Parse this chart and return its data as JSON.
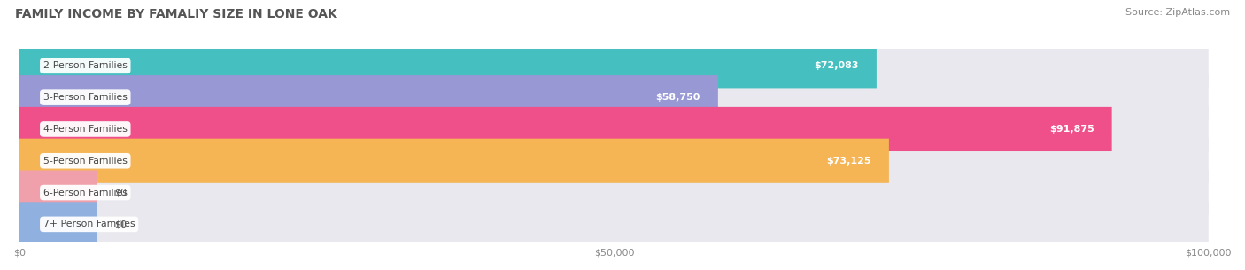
{
  "title": "FAMILY INCOME BY FAMALIY SIZE IN LONE OAK",
  "source": "Source: ZipAtlas.com",
  "categories": [
    "2-Person Families",
    "3-Person Families",
    "4-Person Families",
    "5-Person Families",
    "6-Person Families",
    "7+ Person Families"
  ],
  "values": [
    72083,
    58750,
    91875,
    73125,
    0,
    0
  ],
  "bar_colors": [
    "#45bfbf",
    "#9898d4",
    "#f0508a",
    "#f5b555",
    "#f0a0aa",
    "#90b0e0"
  ],
  "bar_track_color": "#e8e8ee",
  "xlim_max": 100000,
  "xtick_labels": [
    "$0",
    "$50,000",
    "$100,000"
  ],
  "title_fontsize": 10,
  "source_fontsize": 8,
  "bar_height": 0.7,
  "figsize": [
    14.06,
    3.05
  ],
  "dpi": 100,
  "zero_bar_width": 6500
}
